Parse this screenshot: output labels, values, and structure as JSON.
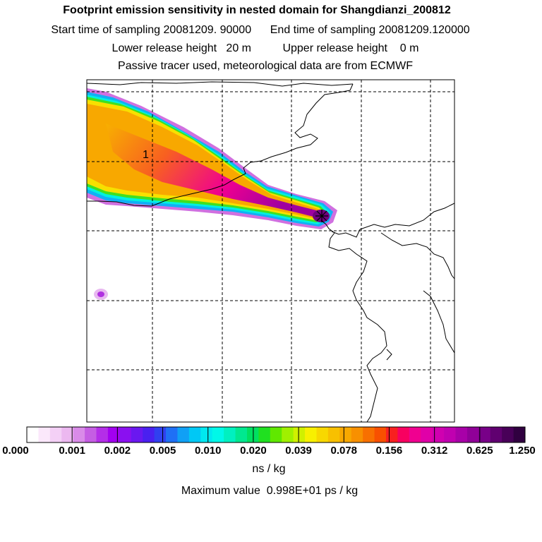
{
  "header": {
    "title": "Footprint emission sensitivity in nested domain for Shangdianzi_200812",
    "sampling_line": "Start time of sampling 20081209. 90000      End time of sampling 20081209.120000",
    "height_line": "Lower release height   20 m          Upper release height    0 m",
    "tracer_line": "Passive tracer used, meteorological data are from ECMWF"
  },
  "map": {
    "contour_label": "1",
    "receptor_marker": "star-icon"
  },
  "colorbar": {
    "labels": [
      "0.000",
      "0.001",
      "0.002",
      "0.005",
      "0.010",
      "0.020",
      "0.039",
      "0.078",
      "0.156",
      "0.312",
      "0.625",
      "1.250"
    ],
    "colors": [
      "#ffffff",
      "#fbe8fb",
      "#f4d0f6",
      "#ecb8f0",
      "#d98be8",
      "#c55ee3",
      "#b42ee8",
      "#a200f0",
      "#8a10f0",
      "#6a18f0",
      "#4a20f0",
      "#3040f0",
      "#1f70f5",
      "#10a0f5",
      "#00c8f5",
      "#00e8f0",
      "#00f8e8",
      "#00f0c0",
      "#00e890",
      "#00e060",
      "#20e020",
      "#60e800",
      "#a0f000",
      "#d0f000",
      "#f8f000",
      "#f8d800",
      "#f8c000",
      "#f8a800",
      "#f89000",
      "#f87000",
      "#f85000",
      "#f82020",
      "#f80060",
      "#f00090",
      "#e000a8",
      "#d000b0",
      "#c000b0",
      "#a800a8",
      "#900098",
      "#780088",
      "#600070",
      "#480058",
      "#300040"
    ],
    "units": "ns / kg",
    "max_value": "Maximum value  0.998E+01 ps / kg"
  }
}
